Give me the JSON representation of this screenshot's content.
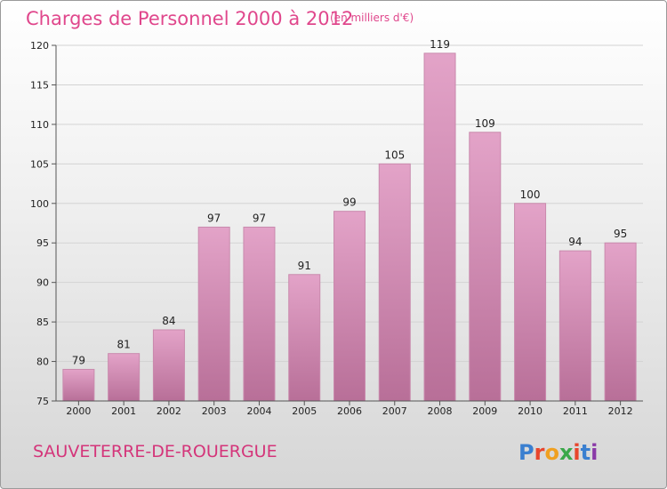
{
  "chart_data": {
    "type": "bar",
    "title": "Charges de Personnel 2000 à 2012",
    "subtitle": "(en milliers d'€)",
    "categories": [
      "2000",
      "2001",
      "2002",
      "2003",
      "2004",
      "2005",
      "2006",
      "2007",
      "2008",
      "2009",
      "2010",
      "2011",
      "2012"
    ],
    "values": [
      79,
      81,
      84,
      97,
      97,
      91,
      99,
      105,
      119,
      109,
      100,
      94,
      95
    ],
    "ylim": [
      75,
      120
    ],
    "yticks": [
      75,
      80,
      85,
      90,
      95,
      100,
      105,
      110,
      115,
      120
    ],
    "grid": true,
    "bar_color": "#e3a3c8",
    "bar_color_dark": "#b86f98"
  },
  "footer": {
    "city": "SAUVETERRE-DE-ROUERGUE",
    "logo": "Proxiti"
  }
}
